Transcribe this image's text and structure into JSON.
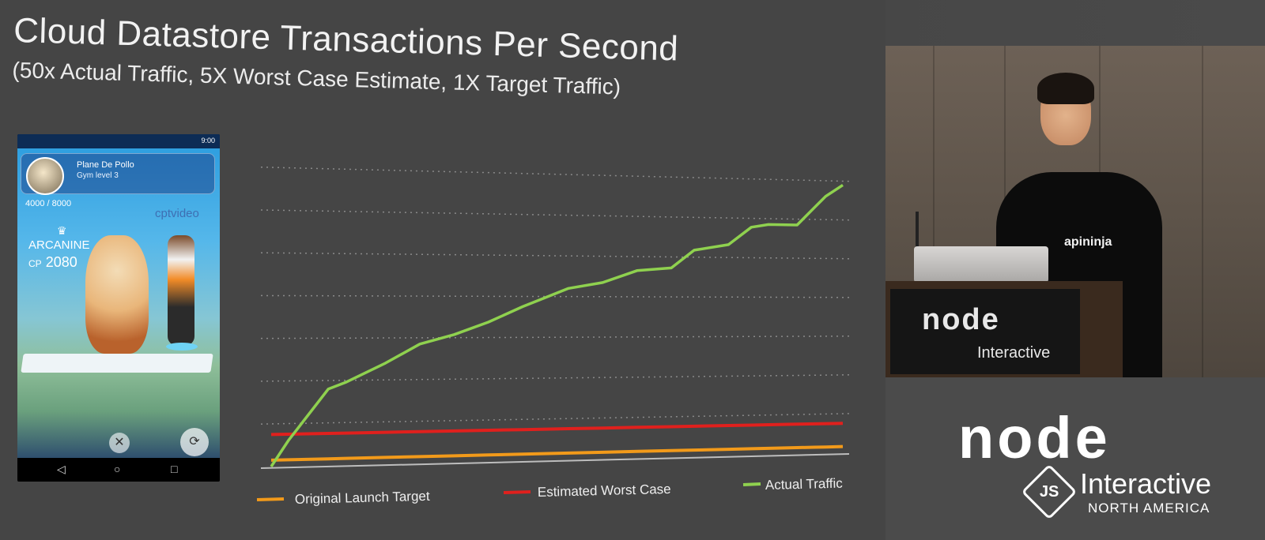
{
  "slide": {
    "title": "Cloud Datastore Transactions Per Second",
    "subtitle": "(50x Actual Traffic, 5X Worst Case Estimate, 1X Target Traffic)"
  },
  "phone": {
    "time": "9:00",
    "trainer_name": "Plane De Pollo",
    "gym_level": "Gym level 3",
    "prestige": "4000 / 8000",
    "watermark": "cptvideo",
    "pokemon_name": "ARCANINE",
    "cp_label": "CP",
    "cp_value": "2080",
    "nav_back": "◁",
    "nav_home": "○",
    "nav_recent": "□"
  },
  "chart_data": {
    "type": "line",
    "title": "Cloud Datastore Transactions Per Second",
    "subtitle": "(50x Actual Traffic, 5X Worst Case Estimate, 1X Target Traffic)",
    "x": [
      0,
      0.03,
      0.1,
      0.13,
      0.2,
      0.26,
      0.32,
      0.38,
      0.44,
      0.52,
      0.58,
      0.64,
      0.7,
      0.74,
      0.8,
      0.84,
      0.87,
      0.92,
      0.95,
      0.97,
      1.0
    ],
    "series": [
      {
        "name": "Original Launch Target",
        "color": "#f29a1a",
        "values": [
          1,
          1,
          1,
          1,
          1,
          1,
          1,
          1,
          1,
          1,
          1,
          1,
          1,
          1,
          1,
          1,
          1,
          1,
          1,
          1,
          1
        ]
      },
      {
        "name": "Estimated Worst Case",
        "color": "#e0201d",
        "values": [
          5,
          5,
          5,
          5,
          5,
          5,
          5,
          5,
          5,
          5,
          5,
          5,
          5,
          5,
          5,
          5,
          5,
          5,
          5,
          5,
          5
        ]
      },
      {
        "name": "Actual Traffic",
        "color": "#8fd14f",
        "values": [
          0,
          4,
          12,
          13,
          16,
          19,
          20.5,
          22.5,
          25,
          28,
          29,
          31,
          31.5,
          34.5,
          35.5,
          38.5,
          39,
          39,
          42,
          44,
          46
        ]
      }
    ],
    "ylim": [
      0,
      50
    ],
    "grid": true,
    "legend_position": "bottom",
    "xlabel": "",
    "ylabel": ""
  },
  "speaker": {
    "shirt_text": "apininja"
  },
  "brand": {
    "node_word": "node",
    "js_badge": "JS",
    "interactive": "Interactive",
    "region": "NORTH AMERICA"
  }
}
